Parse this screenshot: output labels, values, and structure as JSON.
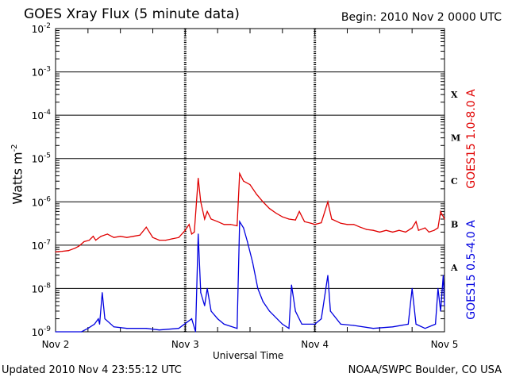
{
  "header": {
    "title": "GOES Xray Flux (5 minute data)",
    "begin": "Begin:  2010 Nov 2 0000 UTC"
  },
  "footer": {
    "updated": "Updated 2010 Nov  4 23:55:12 UTC",
    "credit": "NOAA/SWPC Boulder, CO USA"
  },
  "chart_data": {
    "type": "line",
    "xlabel": "Universal Time",
    "ylabel": "Watts m-2",
    "x_ticks": [
      "Nov 2",
      "Nov 3",
      "Nov 4",
      "Nov 5"
    ],
    "x_range_days": [
      0,
      3
    ],
    "y_scale": "log",
    "ylim": [
      1e-09,
      0.01
    ],
    "y_ticks": [
      "10-9",
      "10-8",
      "10-7",
      "10-6",
      "10-5",
      "10-4",
      "10-3",
      "10-2"
    ],
    "flare_classes": [
      "A",
      "B",
      "C",
      "M",
      "X"
    ],
    "colors": {
      "long": "#e00000",
      "short": "#0000e0"
    },
    "series": [
      {
        "name": "GOES15 1.0-8.0 A",
        "color": "#e00000",
        "points": [
          [
            0.0,
            7e-08
          ],
          [
            0.05,
            7.2e-08
          ],
          [
            0.1,
            7.5e-08
          ],
          [
            0.15,
            8.5e-08
          ],
          [
            0.18,
            9.5e-08
          ],
          [
            0.22,
            1.2e-07
          ],
          [
            0.26,
            1.3e-07
          ],
          [
            0.29,
            1.6e-07
          ],
          [
            0.31,
            1.3e-07
          ],
          [
            0.35,
            1.6e-07
          ],
          [
            0.4,
            1.8e-07
          ],
          [
            0.45,
            1.5e-07
          ],
          [
            0.5,
            1.6e-07
          ],
          [
            0.55,
            1.5e-07
          ],
          [
            0.6,
            1.6e-07
          ],
          [
            0.65,
            1.7e-07
          ],
          [
            0.7,
            2.6e-07
          ],
          [
            0.75,
            1.5e-07
          ],
          [
            0.8,
            1.3e-07
          ],
          [
            0.85,
            1.3e-07
          ],
          [
            0.9,
            1.4e-07
          ],
          [
            0.95,
            1.5e-07
          ],
          [
            1.0,
            2.2e-07
          ],
          [
            1.03,
            3e-07
          ],
          [
            1.05,
            1.8e-07
          ],
          [
            1.07,
            2e-07
          ],
          [
            1.1,
            3.5e-06
          ],
          [
            1.12,
            1e-06
          ],
          [
            1.15,
            4e-07
          ],
          [
            1.17,
            6e-07
          ],
          [
            1.2,
            4e-07
          ],
          [
            1.25,
            3.5e-07
          ],
          [
            1.3,
            3e-07
          ],
          [
            1.35,
            3e-07
          ],
          [
            1.4,
            2.8e-07
          ],
          [
            1.42,
            4.5e-06
          ],
          [
            1.45,
            3e-06
          ],
          [
            1.5,
            2.5e-06
          ],
          [
            1.55,
            1.5e-06
          ],
          [
            1.6,
            1e-06
          ],
          [
            1.65,
            7e-07
          ],
          [
            1.7,
            5.5e-07
          ],
          [
            1.75,
            4.5e-07
          ],
          [
            1.8,
            4e-07
          ],
          [
            1.85,
            3.8e-07
          ],
          [
            1.88,
            6e-07
          ],
          [
            1.92,
            3.5e-07
          ],
          [
            1.97,
            3.2e-07
          ],
          [
            2.0,
            3e-07
          ],
          [
            2.05,
            3.3e-07
          ],
          [
            2.1,
            1e-06
          ],
          [
            2.13,
            4e-07
          ],
          [
            2.2,
            3.2e-07
          ],
          [
            2.25,
            3e-07
          ],
          [
            2.3,
            3e-07
          ],
          [
            2.35,
            2.6e-07
          ],
          [
            2.4,
            2.3e-07
          ],
          [
            2.45,
            2.2e-07
          ],
          [
            2.5,
            2e-07
          ],
          [
            2.55,
            2.2e-07
          ],
          [
            2.6,
            2e-07
          ],
          [
            2.65,
            2.2e-07
          ],
          [
            2.7,
            2e-07
          ],
          [
            2.75,
            2.5e-07
          ],
          [
            2.78,
            3.5e-07
          ],
          [
            2.8,
            2.2e-07
          ],
          [
            2.85,
            2.5e-07
          ],
          [
            2.88,
            2e-07
          ],
          [
            2.92,
            2.2e-07
          ],
          [
            2.95,
            2.5e-07
          ],
          [
            2.97,
            6e-07
          ],
          [
            3.0,
            4e-07
          ]
        ]
      },
      {
        "name": "GOES15 0.5-4.0 A",
        "color": "#0000e0",
        "points": [
          [
            0.0,
            1e-09
          ],
          [
            0.2,
            1e-09
          ],
          [
            0.25,
            1.2e-09
          ],
          [
            0.3,
            1.5e-09
          ],
          [
            0.33,
            2e-09
          ],
          [
            0.34,
            1.5e-09
          ],
          [
            0.36,
            8e-09
          ],
          [
            0.38,
            2e-09
          ],
          [
            0.45,
            1.3e-09
          ],
          [
            0.55,
            1.2e-09
          ],
          [
            0.7,
            1.2e-09
          ],
          [
            0.8,
            1.1e-09
          ],
          [
            0.95,
            1.2e-09
          ],
          [
            1.05,
            2e-09
          ],
          [
            1.08,
            1e-09
          ],
          [
            1.1,
            1.8e-07
          ],
          [
            1.12,
            8e-09
          ],
          [
            1.15,
            4e-09
          ],
          [
            1.17,
            1e-08
          ],
          [
            1.2,
            3e-09
          ],
          [
            1.25,
            2e-09
          ],
          [
            1.3,
            1.5e-09
          ],
          [
            1.4,
            1.2e-09
          ],
          [
            1.42,
            3.5e-07
          ],
          [
            1.45,
            2.5e-07
          ],
          [
            1.48,
            1.2e-07
          ],
          [
            1.52,
            4e-08
          ],
          [
            1.56,
            1e-08
          ],
          [
            1.6,
            5e-09
          ],
          [
            1.65,
            3e-09
          ],
          [
            1.75,
            1.5e-09
          ],
          [
            1.8,
            1.2e-09
          ],
          [
            1.82,
            1.2e-08
          ],
          [
            1.85,
            3e-09
          ],
          [
            1.9,
            1.5e-09
          ],
          [
            2.0,
            1.5e-09
          ],
          [
            2.05,
            2e-09
          ],
          [
            2.1,
            2e-08
          ],
          [
            2.12,
            3e-09
          ],
          [
            2.2,
            1.5e-09
          ],
          [
            2.3,
            1.4e-09
          ],
          [
            2.45,
            1.2e-09
          ],
          [
            2.6,
            1.3e-09
          ],
          [
            2.72,
            1.5e-09
          ],
          [
            2.75,
            1e-08
          ],
          [
            2.78,
            1.5e-09
          ],
          [
            2.85,
            1.2e-09
          ],
          [
            2.93,
            1.5e-09
          ],
          [
            2.95,
            1e-08
          ],
          [
            2.97,
            3e-09
          ],
          [
            2.99,
            2e-08
          ],
          [
            3.0,
            4e-09
          ]
        ]
      }
    ]
  }
}
